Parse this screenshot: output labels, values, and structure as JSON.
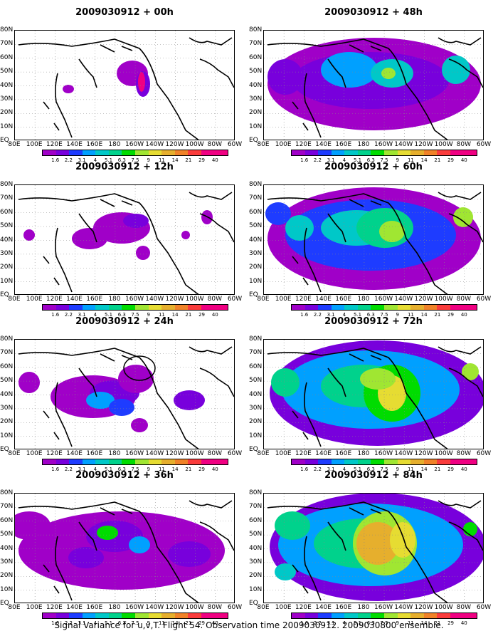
{
  "caption": "Signal Variance for u,v,T. Flight 54. Observation time 2009030912. 2009030800 ensemble.",
  "lat_labels": [
    "80N",
    "70N",
    "60N",
    "50N",
    "40N",
    "30N",
    "20N",
    "10N",
    "EQ"
  ],
  "lon_labels": [
    "80E",
    "100E",
    "120E",
    "140E",
    "160E",
    "180",
    "160W",
    "140W",
    "120W",
    "100W",
    "80W",
    "60W"
  ],
  "colorbar": {
    "labels": [
      "1.6",
      "2.2",
      "3.1",
      "4",
      "5.1",
      "6.3",
      "7.5",
      "9",
      "11",
      "14",
      "21",
      "29",
      "40"
    ],
    "colors": [
      "#a000c8",
      "#7800dc",
      "#1e3cff",
      "#00a0ff",
      "#00c8c8",
      "#00d28c",
      "#00dc00",
      "#a0e632",
      "#e6dc32",
      "#e6af2d",
      "#f08228",
      "#fa3c3c",
      "#f00082"
    ]
  },
  "panels": [
    {
      "title": "2009030912 + 00h",
      "lead": "00h"
    },
    {
      "title": "2009030912 + 12h",
      "lead": "12h"
    },
    {
      "title": "2009030912 + 24h",
      "lead": "24h"
    },
    {
      "title": "2009030912 + 36h",
      "lead": "36h"
    },
    {
      "title": "2009030912 + 48h",
      "lead": "48h"
    },
    {
      "title": "2009030912 + 60h",
      "lead": "60h"
    },
    {
      "title": "2009030912 + 72h",
      "lead": "72h"
    },
    {
      "title": "2009030912 + 84h",
      "lead": "84h"
    }
  ]
}
